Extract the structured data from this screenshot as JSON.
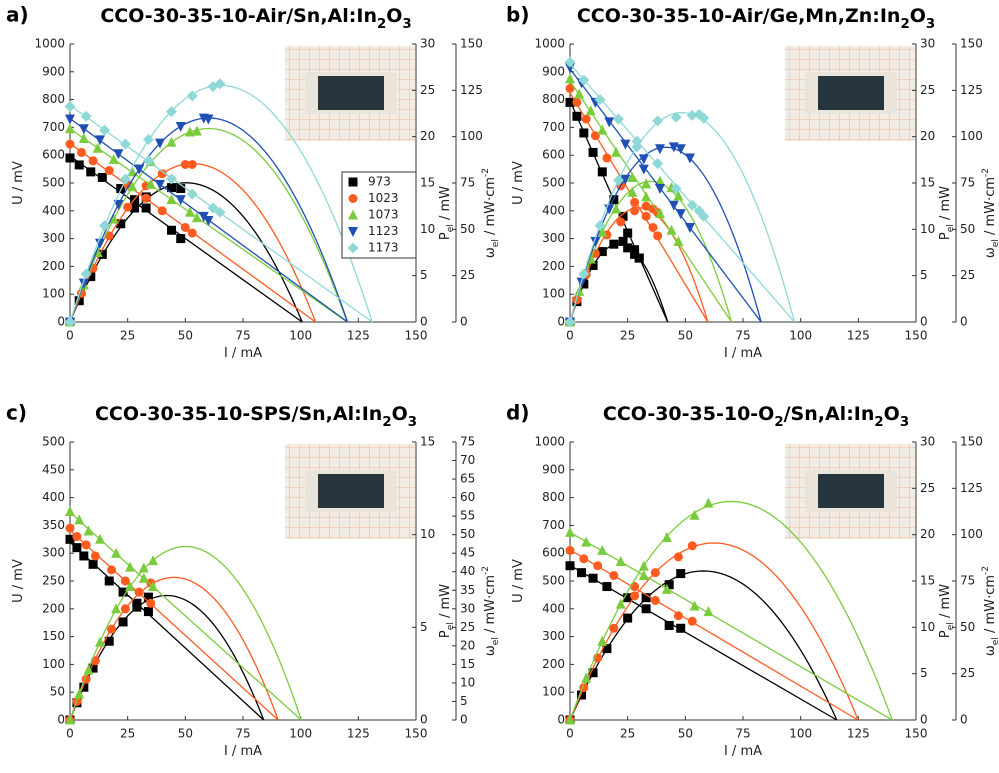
{
  "chart_data": [
    {
      "type": "scatter",
      "panel_label": "a)",
      "title": [
        {
          "text": "CCO-30-35-10-Air/Sn,Al:In"
        },
        {
          "text": "2",
          "sub": true
        },
        {
          "text": "O"
        },
        {
          "text": "3",
          "sub": true
        }
      ],
      "x_label": [
        {
          "text": "I / mA"
        }
      ],
      "y_label": [
        {
          "text": "U / mV"
        }
      ],
      "y2_label": [
        {
          "text": "P"
        },
        {
          "text": "el",
          "sub": true
        },
        {
          "text": " / mW"
        }
      ],
      "y3_label": [
        {
          "text": "ω"
        },
        {
          "text": "el",
          "sub": true
        },
        {
          "text": " / mW·cm"
        },
        {
          "text": "-2",
          "sup": true
        }
      ],
      "xlim": [
        0,
        150
      ],
      "xticks": [
        0,
        25,
        50,
        75,
        100,
        125,
        150
      ],
      "ylim": [
        0,
        1000
      ],
      "yticks": [
        0,
        100,
        200,
        300,
        400,
        500,
        600,
        700,
        800,
        900,
        1000
      ],
      "y2lim": [
        0,
        30
      ],
      "y2ticks": [
        0,
        5,
        10,
        15,
        20,
        25,
        30
      ],
      "y3lim": [
        0,
        150
      ],
      "y3ticks": [
        0,
        25,
        50,
        75,
        100,
        125,
        150
      ],
      "legend": "right",
      "series": [
        {
          "name": "973",
          "color": "#000000",
          "marker": "square",
          "x": [
            0,
            4,
            9,
            14,
            22,
            28,
            33,
            44,
            48
          ],
          "values": [
            590,
            565,
            540,
            520,
            480,
            440,
            410,
            330,
            300
          ],
          "power": [
            0,
            2.3,
            4.9,
            7.3,
            10.6,
            12.3,
            13.5,
            14.5,
            14.4
          ]
        },
        {
          "name": "1023",
          "color": "#ff5a1f",
          "marker": "circle",
          "x": [
            0,
            5,
            10,
            17,
            25,
            33,
            40,
            50,
            53
          ],
          "values": [
            640,
            610,
            580,
            545,
            495,
            445,
            400,
            340,
            320
          ],
          "power": [
            0,
            3.1,
            5.8,
            9.3,
            12.4,
            14.7,
            16,
            17,
            17
          ]
        },
        {
          "name": "1073",
          "color": "#7acc3c",
          "marker": "triangle-up",
          "x": [
            0,
            6,
            12,
            19,
            27,
            35,
            44,
            52,
            55
          ],
          "values": [
            695,
            660,
            625,
            585,
            540,
            495,
            440,
            395,
            375
          ],
          "power": [
            0,
            4,
            7.5,
            11.1,
            14.6,
            17.3,
            19.4,
            20.5,
            20.6
          ]
        },
        {
          "name": "1123",
          "color": "#1f4fb4",
          "marker": "triangle-down",
          "x": [
            0,
            6,
            13,
            21,
            30,
            39,
            48,
            58,
            60
          ],
          "values": [
            730,
            695,
            655,
            605,
            550,
            495,
            440,
            380,
            365
          ],
          "power": [
            0,
            4.2,
            8.5,
            12.7,
            16.5,
            19.3,
            21.1,
            22,
            21.9
          ]
        },
        {
          "name": "1173",
          "color": "#8fd8d8",
          "marker": "diamond",
          "x": [
            0,
            7,
            15,
            24,
            34,
            44,
            53,
            62,
            65
          ],
          "values": [
            775,
            740,
            690,
            640,
            580,
            515,
            460,
            410,
            395
          ],
          "power": [
            0,
            5.2,
            10.4,
            15.4,
            19.7,
            22.7,
            24.4,
            25.4,
            25.7
          ]
        }
      ]
    },
    {
      "type": "scatter",
      "panel_label": "b)",
      "title": [
        {
          "text": "CCO-30-35-10-Air/Ge,Mn,Zn:In"
        },
        {
          "text": "2",
          "sub": true
        },
        {
          "text": "O"
        },
        {
          "text": "3",
          "sub": true
        }
      ],
      "x_label": [
        {
          "text": "I / mA"
        }
      ],
      "y_label": [
        {
          "text": "U / mV"
        }
      ],
      "y2_label": [
        {
          "text": "P"
        },
        {
          "text": "el",
          "sub": true
        },
        {
          "text": " / mW"
        }
      ],
      "y3_label": [
        {
          "text": "ω"
        },
        {
          "text": "el",
          "sub": true
        },
        {
          "text": " / mW·cm"
        },
        {
          "text": "-2",
          "sup": true
        }
      ],
      "xlim": [
        0,
        150
      ],
      "xticks": [
        0,
        25,
        50,
        75,
        100,
        125,
        150
      ],
      "ylim": [
        0,
        1000
      ],
      "yticks": [
        0,
        100,
        200,
        300,
        400,
        500,
        600,
        700,
        800,
        900,
        1000
      ],
      "y2lim": [
        0,
        30
      ],
      "y2ticks": [
        0,
        5,
        10,
        15,
        20,
        25,
        30
      ],
      "y3lim": [
        0,
        150
      ],
      "y3ticks": [
        0,
        25,
        50,
        75,
        100,
        125,
        150
      ],
      "series": [
        {
          "name": "973",
          "color": "#000000",
          "marker": "square",
          "x": [
            0,
            3,
            6,
            10,
            14,
            19,
            23,
            25,
            28,
            30
          ],
          "values": [
            790,
            740,
            680,
            610,
            540,
            440,
            380,
            320,
            260,
            230
          ],
          "power": [
            0,
            2.2,
            4.1,
            6.1,
            7.6,
            8.4,
            8.7,
            8,
            7.3,
            6.9
          ]
        },
        {
          "name": "1023",
          "color": "#ff5a1f",
          "marker": "circle",
          "x": [
            0,
            3,
            7,
            11,
            16,
            22,
            28,
            33,
            36,
            38
          ],
          "values": [
            840,
            790,
            730,
            670,
            590,
            490,
            430,
            380,
            340,
            310
          ],
          "power": [
            0,
            2.4,
            5.1,
            7.4,
            9.4,
            10.8,
            12,
            12.5,
            12.2,
            11.8
          ]
        },
        {
          "name": "1073",
          "color": "#7acc3c",
          "marker": "triangle-up",
          "x": [
            0,
            4,
            9,
            14,
            20,
            27,
            33,
            39,
            44,
            47
          ],
          "values": [
            875,
            820,
            760,
            690,
            610,
            520,
            450,
            390,
            330,
            290
          ],
          "power": [
            0,
            3.3,
            6.8,
            9.7,
            12.2,
            14,
            14.9,
            15.2,
            14.5,
            13.6
          ]
        },
        {
          "name": "1123",
          "color": "#1f4fb4",
          "marker": "triangle-down",
          "x": [
            0,
            5,
            11,
            17,
            24,
            32,
            39,
            45,
            48,
            52
          ],
          "values": [
            915,
            860,
            790,
            720,
            640,
            550,
            480,
            420,
            390,
            340
          ],
          "power": [
            0,
            4.3,
            8.7,
            12.2,
            15.4,
            17.6,
            18.7,
            18.9,
            18.7,
            17.7
          ]
        },
        {
          "name": "1173",
          "color": "#8fd8d8",
          "marker": "diamond",
          "x": [
            0,
            6,
            13,
            21,
            29,
            38,
            46,
            53,
            56,
            58
          ],
          "values": [
            935,
            870,
            800,
            730,
            650,
            570,
            480,
            420,
            400,
            380
          ],
          "power": [
            0,
            5.2,
            10.4,
            15.3,
            18.9,
            21.7,
            22.1,
            22.3,
            22.4,
            22
          ]
        }
      ]
    },
    {
      "type": "scatter",
      "panel_label": "c)",
      "title": [
        {
          "text": "CCO-30-35-10-SPS/Sn,Al:In"
        },
        {
          "text": "2",
          "sub": true
        },
        {
          "text": "O"
        },
        {
          "text": "3",
          "sub": true
        }
      ],
      "x_label": [
        {
          "text": "I / mA"
        }
      ],
      "y_label": [
        {
          "text": "U / mV"
        }
      ],
      "y2_label": [
        {
          "text": "P"
        },
        {
          "text": "el",
          "sub": true
        },
        {
          "text": " / mW"
        }
      ],
      "y3_label": [
        {
          "text": "ω"
        },
        {
          "text": "el",
          "sub": true
        },
        {
          "text": " / mW·cm"
        },
        {
          "text": "-2",
          "sup": true
        }
      ],
      "xlim": [
        0,
        150
      ],
      "xticks": [
        0,
        25,
        50,
        75,
        100,
        125,
        150
      ],
      "ylim": [
        0,
        500
      ],
      "yticks": [
        0,
        50,
        100,
        150,
        200,
        250,
        300,
        350,
        400,
        450,
        500
      ],
      "y2lim": [
        0,
        15
      ],
      "y2ticks": [
        0,
        5,
        10,
        15
      ],
      "y3lim": [
        0,
        75
      ],
      "y3ticks": [
        0,
        5,
        10,
        15,
        20,
        25,
        30,
        35,
        40,
        45,
        50,
        55,
        60,
        65,
        70,
        75
      ],
      "series": [
        {
          "name": "973",
          "color": "#000000",
          "marker": "square",
          "x": [
            0,
            3,
            6,
            10,
            17,
            23,
            29,
            34
          ],
          "values": [
            325,
            310,
            295,
            280,
            250,
            230,
            210,
            195
          ],
          "power": [
            0,
            0.93,
            1.77,
            2.8,
            4.25,
            5.29,
            6.09,
            6.63
          ]
        },
        {
          "name": "1023",
          "color": "#ff5a1f",
          "marker": "circle",
          "x": [
            0,
            3,
            7,
            11,
            18,
            24,
            30,
            35
          ],
          "values": [
            345,
            330,
            315,
            295,
            270,
            250,
            230,
            210
          ],
          "power": [
            0,
            1,
            2.2,
            3.2,
            4.9,
            6,
            6.9,
            7.4
          ]
        },
        {
          "name": "1073",
          "color": "#7acc3c",
          "marker": "triangle-up",
          "x": [
            0,
            4,
            8,
            13,
            20,
            26,
            32,
            36
          ],
          "values": [
            375,
            360,
            340,
            325,
            300,
            275,
            255,
            240
          ],
          "power": [
            0,
            1.4,
            2.7,
            4.2,
            6,
            7.2,
            8.2,
            8.6
          ]
        }
      ]
    },
    {
      "type": "scatter",
      "panel_label": "d)",
      "title": [
        {
          "text": "CCO-30-35-10-O"
        },
        {
          "text": "2",
          "sub": true
        },
        {
          "text": "/Sn,Al:In"
        },
        {
          "text": "2",
          "sub": true
        },
        {
          "text": "O"
        },
        {
          "text": "3",
          "sub": true
        }
      ],
      "x_label": [
        {
          "text": "I / mA"
        }
      ],
      "y_label": [
        {
          "text": "U / mV"
        }
      ],
      "y2_label": [
        {
          "text": "P"
        },
        {
          "text": "el",
          "sub": true
        },
        {
          "text": " / mW"
        }
      ],
      "y3_label": [
        {
          "text": "ω"
        },
        {
          "text": "el",
          "sub": true
        },
        {
          "text": " / mW·cm"
        },
        {
          "text": "-2",
          "sup": true
        }
      ],
      "xlim": [
        0,
        150
      ],
      "xticks": [
        0,
        25,
        50,
        75,
        100,
        125,
        150
      ],
      "ylim": [
        0,
        1000
      ],
      "yticks": [
        0,
        100,
        200,
        300,
        400,
        500,
        600,
        700,
        800,
        900,
        1000
      ],
      "y2lim": [
        0,
        30
      ],
      "y2ticks": [
        0,
        5,
        10,
        15,
        20,
        25,
        30
      ],
      "y3lim": [
        0,
        150
      ],
      "y3ticks": [
        0,
        25,
        50,
        75,
        100,
        125,
        150
      ],
      "series": [
        {
          "name": "973",
          "color": "#000000",
          "marker": "square",
          "x": [
            0,
            5,
            10,
            16,
            25,
            33,
            43,
            48
          ],
          "values": [
            555,
            530,
            510,
            480,
            440,
            400,
            340,
            330
          ],
          "power": [
            0,
            2.7,
            5.1,
            7.7,
            11,
            13.2,
            14.6,
            15.8
          ]
        },
        {
          "name": "1023",
          "color": "#ff5a1f",
          "marker": "circle",
          "x": [
            0,
            6,
            12,
            19,
            28,
            37,
            47,
            53
          ],
          "values": [
            610,
            580,
            555,
            520,
            480,
            430,
            375,
            355
          ],
          "power": [
            0,
            3.5,
            6.7,
            9.9,
            13.4,
            15.9,
            17.6,
            18.8
          ]
        },
        {
          "name": "1073",
          "color": "#7acc3c",
          "marker": "triangle-up",
          "x": [
            0,
            7,
            14,
            22,
            32,
            42,
            54,
            60
          ],
          "values": [
            675,
            640,
            610,
            570,
            520,
            470,
            410,
            390
          ],
          "power": [
            0,
            4.5,
            8.5,
            12.5,
            16.6,
            19.7,
            22.1,
            23.4
          ]
        }
      ]
    }
  ]
}
